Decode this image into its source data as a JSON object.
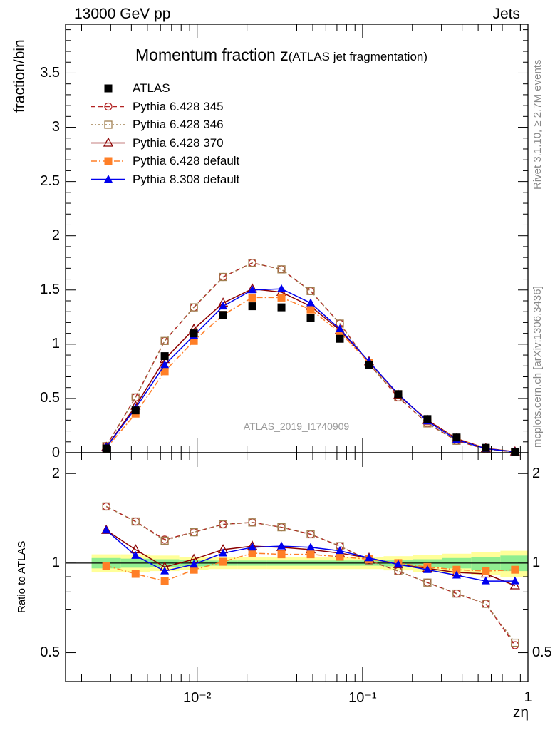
{
  "header": {
    "left": "13000 GeV pp",
    "right": "Jets"
  },
  "title": {
    "main": "Momentum fraction z",
    "sub": "(ATLAS jet fragmentation)"
  },
  "axes": {
    "top_ylabel": "fraction/bin",
    "bottom_ylabel": "Ratio to ATLAS",
    "xlabel": "zη",
    "top_yticks": [
      "0",
      "0.5",
      "1",
      "1.5",
      "2",
      "2.5",
      "3",
      "3.5"
    ],
    "bottom_yticks_left": [
      "0.5",
      "1",
      "2"
    ],
    "bottom_yticks_right": [
      "0.5",
      "1",
      "2"
    ],
    "xticks": [
      "10⁻²",
      "10⁻¹",
      "1"
    ]
  },
  "annotations": {
    "watermark": "ATLAS_2019_I1740909",
    "side_top": "Rivet 3.1.10, ≥ 2.7M events",
    "side_bottom": "mcplots.cern.ch [arXiv:1306.3436]"
  },
  "chart_data": {
    "type": "line",
    "x_scale": "log",
    "xlim": [
      0.0016,
      1.0
    ],
    "top_ylim": [
      0,
      3.95
    ],
    "bottom_ylim": [
      0.4,
      2.35
    ],
    "bottom_scale": "log",
    "x": [
      0.00282,
      0.00424,
      0.00636,
      0.00955,
      0.01434,
      0.02154,
      0.03233,
      0.04855,
      0.07289,
      0.10945,
      0.16432,
      0.24672,
      0.37045,
      0.5562,
      0.8351
    ],
    "series": [
      {
        "name": "ATLAS",
        "color": "#000000",
        "marker": "square-filled",
        "line": "none",
        "values": [
          0.04,
          0.39,
          0.89,
          1.1,
          1.27,
          1.35,
          1.34,
          1.24,
          1.05,
          0.81,
          0.54,
          0.31,
          0.14,
          0.045,
          0.01
        ],
        "ratio": [
          1.0,
          1.0,
          1.0,
          1.0,
          1.0,
          1.0,
          1.0,
          1.0,
          1.0,
          1.0,
          1.0,
          1.0,
          1.0,
          1.0,
          1.0
        ]
      },
      {
        "name": "Pythia 6.428 345",
        "color": "#b22222",
        "marker": "circle-open",
        "line": "dashed",
        "values": [
          0.06,
          0.51,
          1.03,
          1.34,
          1.62,
          1.75,
          1.69,
          1.49,
          1.19,
          0.82,
          0.51,
          0.27,
          0.11,
          0.033,
          0.005
        ],
        "ratio": [
          1.55,
          1.38,
          1.2,
          1.27,
          1.35,
          1.37,
          1.32,
          1.25,
          1.14,
          1.02,
          0.94,
          0.86,
          0.79,
          0.73,
          0.53
        ]
      },
      {
        "name": "Pythia 6.428 346",
        "color": "#a08050",
        "marker": "square-open",
        "line": "dotted",
        "values": [
          0.06,
          0.51,
          1.03,
          1.34,
          1.62,
          1.75,
          1.69,
          1.49,
          1.19,
          0.82,
          0.51,
          0.27,
          0.11,
          0.033,
          0.005
        ],
        "ratio": [
          1.55,
          1.38,
          1.19,
          1.27,
          1.35,
          1.37,
          1.32,
          1.25,
          1.14,
          1.02,
          0.94,
          0.86,
          0.79,
          0.73,
          0.54
        ]
      },
      {
        "name": "Pythia 6.428 370",
        "color": "#8b0000",
        "marker": "triangle-open",
        "line": "solid",
        "values": [
          0.05,
          0.43,
          0.86,
          1.14,
          1.38,
          1.51,
          1.48,
          1.35,
          1.13,
          0.84,
          0.53,
          0.3,
          0.13,
          0.04,
          0.009
        ],
        "ratio": [
          1.29,
          1.11,
          0.97,
          1.03,
          1.11,
          1.14,
          1.13,
          1.11,
          1.08,
          1.04,
          0.99,
          0.96,
          0.93,
          0.92,
          0.84
        ]
      },
      {
        "name": "Pythia 6.428 default",
        "color": "#ff7f27",
        "marker": "square-filled",
        "line": "dashdot",
        "values": [
          0.04,
          0.36,
          0.75,
          1.03,
          1.27,
          1.43,
          1.43,
          1.32,
          1.11,
          0.83,
          0.54,
          0.29,
          0.13,
          0.042,
          0.009
        ],
        "ratio": [
          0.98,
          0.92,
          0.87,
          0.95,
          1.01,
          1.08,
          1.07,
          1.07,
          1.05,
          1.03,
          1.0,
          0.97,
          0.95,
          0.94,
          0.95
        ]
      },
      {
        "name": "Pythia 8.308 default",
        "color": "#0000ee",
        "marker": "triangle-filled",
        "line": "solid",
        "values": [
          0.05,
          0.41,
          0.81,
          1.08,
          1.35,
          1.5,
          1.51,
          1.38,
          1.14,
          0.84,
          0.54,
          0.29,
          0.12,
          0.037,
          0.008
        ],
        "ratio": [
          1.29,
          1.06,
          0.94,
          0.99,
          1.08,
          1.13,
          1.14,
          1.13,
          1.1,
          1.04,
          0.99,
          0.95,
          0.91,
          0.87,
          0.87
        ]
      }
    ],
    "uncertainty_bands": {
      "yellow_half_width": [
        0.07,
        0.07,
        0.06,
        0.05,
        0.045,
        0.045,
        0.045,
        0.045,
        0.045,
        0.045,
        0.055,
        0.065,
        0.075,
        0.09,
        0.1
      ],
      "green_half_width": [
        0.04,
        0.035,
        0.03,
        0.025,
        0.02,
        0.02,
        0.02,
        0.02,
        0.02,
        0.02,
        0.025,
        0.03,
        0.04,
        0.05,
        0.06
      ]
    }
  }
}
